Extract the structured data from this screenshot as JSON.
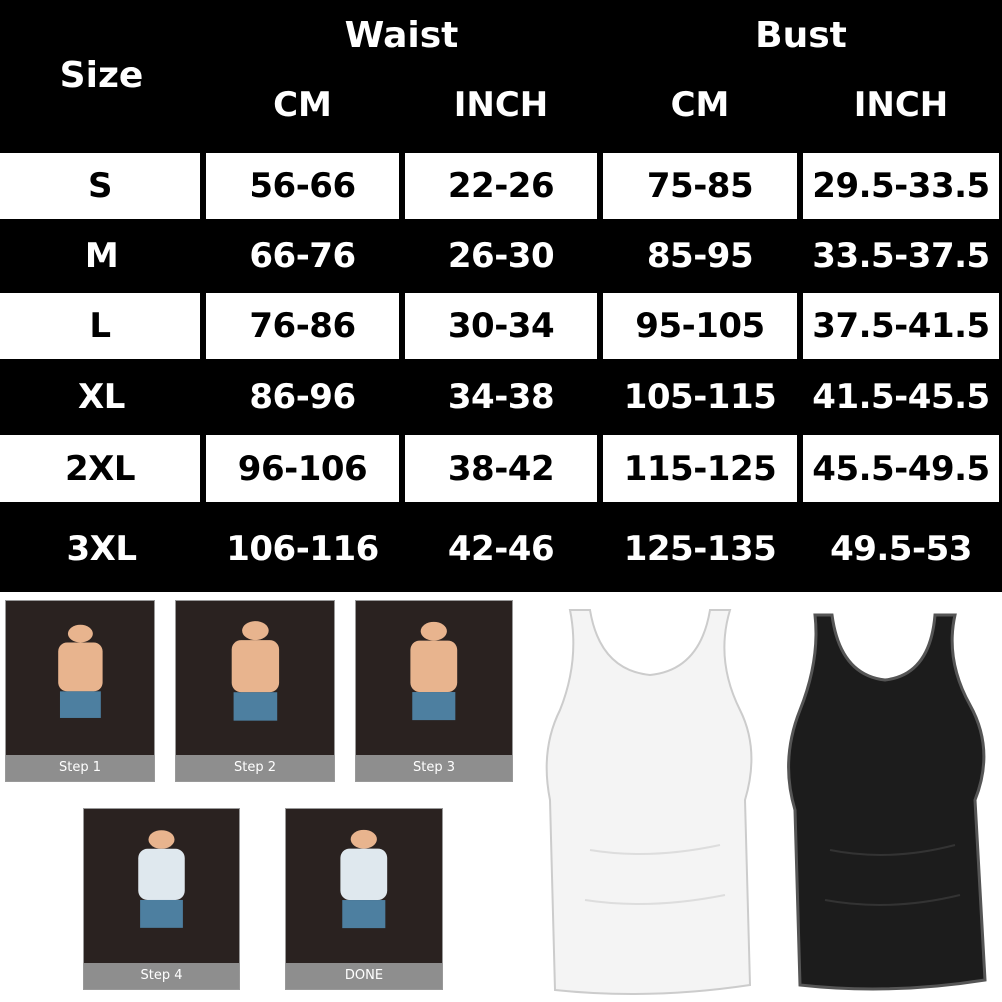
{
  "table": {
    "size_header": "Size",
    "groups": [
      "Waist",
      "Bust"
    ],
    "units": [
      "CM",
      "INCH",
      "CM",
      "INCH"
    ],
    "rows": [
      [
        "S",
        "56-66",
        "22-26",
        "75-85",
        "29.5-33.5"
      ],
      [
        "M",
        "66-76",
        "26-30",
        "85-95",
        "33.5-37.5"
      ],
      [
        "L",
        "76-86",
        "30-34",
        "95-105",
        "37.5-41.5"
      ],
      [
        "XL",
        "86-96",
        "34-38",
        "105-115",
        "41.5-45.5"
      ],
      [
        "2XL",
        "96-106",
        "38-42",
        "115-125",
        "45.5-49.5"
      ],
      [
        "3XL",
        "106-116",
        "42-46",
        "125-135",
        "49.5-53"
      ]
    ]
  },
  "steps": [
    "Step 1",
    "Step 2",
    "Step 3",
    "Step 4",
    "DONE"
  ],
  "colors": {
    "black": "#000000",
    "white": "#ffffff",
    "step_bg": "#2a2220",
    "caption_bg": "#8e8e8e",
    "shorts": "#4d7fa0",
    "skin": "#e8b48e"
  }
}
